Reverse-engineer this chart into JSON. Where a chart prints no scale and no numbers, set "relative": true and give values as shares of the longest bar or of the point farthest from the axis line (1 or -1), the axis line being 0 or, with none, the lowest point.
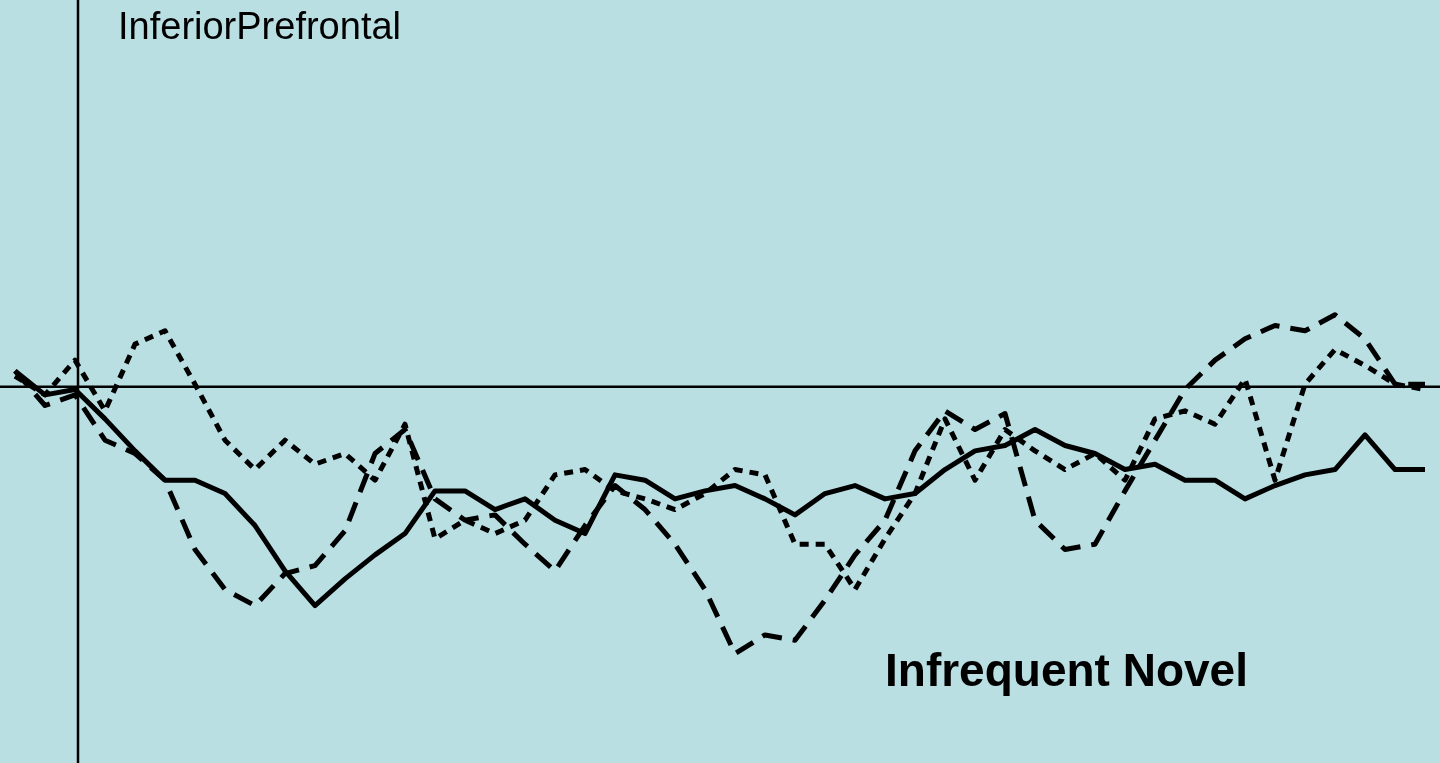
{
  "chart_data": {
    "type": "line",
    "title": "InferiorPrefrontal",
    "relative": true,
    "grid": false,
    "marker": "none",
    "annotations": [
      "Infrequent Novel"
    ],
    "categories": [
      null,
      null,
      null,
      null,
      null,
      null,
      null,
      null,
      null,
      null,
      null,
      null,
      null,
      null,
      null,
      null,
      null,
      null,
      null,
      null,
      null,
      null,
      null,
      null,
      null,
      null,
      null,
      null,
      null,
      null,
      null,
      null,
      null,
      null,
      null,
      null,
      null,
      null,
      null,
      null,
      null,
      null,
      null,
      null,
      null,
      null,
      null,
      null
    ],
    "series": [
      {
        "color": "#000000",
        "line_style": "solid",
        "values": [
          0.06,
          -0.03,
          -0.01,
          -0.12,
          -0.24,
          -0.35,
          -0.35,
          -0.4,
          -0.52,
          -0.69,
          -0.82,
          -0.72,
          -0.63,
          -0.55,
          -0.39,
          -0.39,
          -0.46,
          -0.42,
          -0.5,
          -0.55,
          -0.33,
          -0.35,
          -0.42,
          -0.39,
          -0.37,
          -0.42,
          -0.48,
          -0.4,
          -0.37,
          -0.42,
          -0.4,
          -0.31,
          -0.24,
          -0.22,
          -0.16,
          -0.22,
          -0.25,
          -0.31,
          -0.29,
          -0.35,
          -0.35,
          -0.42,
          -0.37,
          -0.33,
          -0.31,
          -0.18,
          -0.31,
          -0.31
        ]
      },
      {
        "color": "#000000",
        "line_style": "dashed",
        "values": [
          0.06,
          -0.07,
          -0.03,
          -0.2,
          -0.25,
          -0.35,
          -0.61,
          -0.76,
          -0.82,
          -0.7,
          -0.67,
          -0.54,
          -0.25,
          -0.16,
          -0.42,
          -0.5,
          -0.48,
          -0.59,
          -0.69,
          -0.52,
          -0.37,
          -0.46,
          -0.59,
          -0.76,
          -1,
          -0.93,
          -0.95,
          -0.8,
          -0.63,
          -0.5,
          -0.24,
          -0.09,
          -0.16,
          -0.1,
          -0.5,
          -0.61,
          -0.59,
          -0.39,
          -0.2,
          -0.01,
          0.1,
          0.18,
          0.23,
          0.21,
          0.27,
          0.18,
          0.01,
          0.01
        ]
      },
      {
        "color": "#000000",
        "line_style": "dotted",
        "values": [
          0.04,
          -0.03,
          0.1,
          -0.09,
          0.16,
          0.21,
          0.01,
          -0.2,
          -0.31,
          -0.2,
          -0.29,
          -0.25,
          -0.35,
          -0.14,
          -0.57,
          -0.5,
          -0.55,
          -0.5,
          -0.33,
          -0.31,
          -0.39,
          -0.42,
          -0.46,
          -0.4,
          -0.31,
          -0.33,
          -0.59,
          -0.59,
          -0.76,
          -0.57,
          -0.4,
          -0.12,
          -0.35,
          -0.16,
          -0.24,
          -0.31,
          -0.25,
          -0.35,
          -0.12,
          -0.09,
          -0.14,
          0.03,
          -0.35,
          0.01,
          0.14,
          0.08,
          0.01,
          -0.01
        ]
      }
    ]
  }
}
